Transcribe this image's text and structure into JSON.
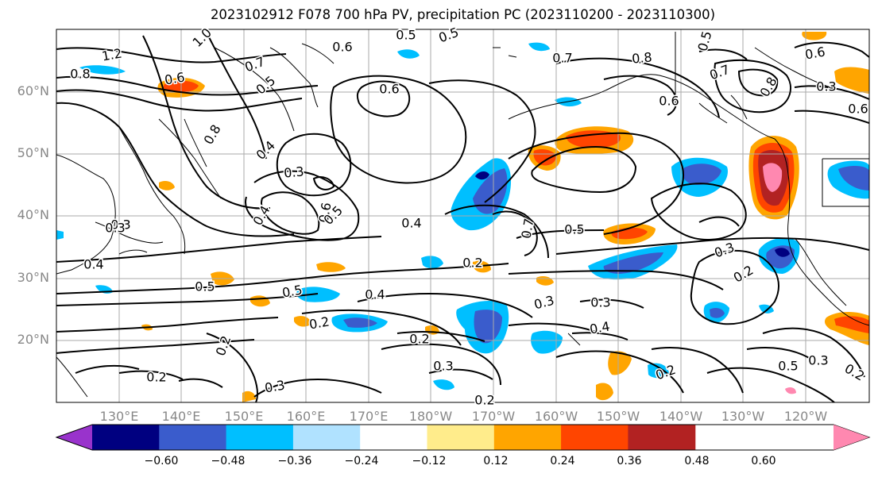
{
  "title": "2023102912 F078 700 hPa PV, precipitation PC (2023110200 - 2023110300)",
  "lat_labels": [
    "60°N",
    "50°N",
    "40°N",
    "30°N",
    "20°N"
  ],
  "lon_labels": [
    "130°E",
    "140°E",
    "150°E",
    "160°E",
    "170°E",
    "180°W",
    "170°W",
    "160°W",
    "150°W",
    "140°W",
    "130°W",
    "120°W"
  ],
  "contour_labels": [
    "1.2",
    "0.8",
    "1.0",
    "0.7",
    "0.6",
    "0.5",
    "0.5",
    "0.6",
    "0.5",
    "0.7",
    "0.8",
    "0.5",
    "0.6",
    "0.7",
    "0.8",
    "0.4",
    "0.3",
    "0.6",
    "0.5",
    "0.4",
    "0.8",
    "0.6",
    "0.3",
    "0.4",
    "0.5",
    "0.4",
    "0.7",
    "0.5",
    "0.2",
    "0.5",
    "0.4",
    "0.3",
    "0.3",
    "0.3",
    "0.2",
    "0.2",
    "0.2",
    "0.3",
    "0.4",
    "0.2",
    "0.2",
    "0.3",
    "0.2",
    "0.2",
    "0.5",
    "0.3",
    "0.2",
    "0.6",
    "0.6",
    "0.3",
    "0.3"
  ],
  "colorbar": {
    "colors": [
      "#9933cc",
      "#000080",
      "#3a5ccc",
      "#00bfff",
      "#b0e2ff",
      "#ffffff",
      "#ffec8b",
      "#ffa500",
      "#ff4500",
      "#b22222",
      "#ff88b0"
    ],
    "tick_labels": [
      "−0.60",
      "−0.48",
      "−0.36",
      "−0.24",
      "−0.12",
      "0.12",
      "0.24",
      "0.36",
      "0.48",
      "0.60"
    ]
  }
}
